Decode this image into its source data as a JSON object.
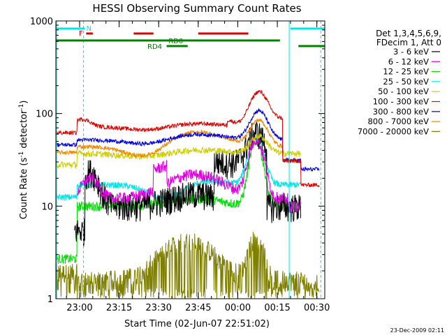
{
  "chart_data": {
    "type": "line",
    "title": "HESSI Observing Summary Count Rates",
    "xlabel": "Start Time (02-Jun-07 22:51:02)",
    "ylabel_main": "Count Rate (s",
    "ylabel_sup1": "-1",
    "ylabel_mid": " detector",
    "ylabel_sup2": "-1",
    "ylabel_end": ")",
    "y_scale": "log",
    "ylim": [
      1,
      1000
    ],
    "xlim_minutes": [
      0,
      102
    ],
    "y_ticks": [
      "1",
      "10",
      "100",
      "1000"
    ],
    "x_ticks": [
      {
        "label": "23:00",
        "t": 9
      },
      {
        "label": "23:15",
        "t": 24
      },
      {
        "label": "23:30",
        "t": 39
      },
      {
        "label": "23:45",
        "t": 54
      },
      {
        "label": "00:00",
        "t": 69
      },
      {
        "label": "00:15",
        "t": 84
      },
      {
        "label": "00:30",
        "t": 99
      }
    ],
    "legend_header": [
      "Det 1,3,4,5,6,9,",
      "FDecim 1, Att 0"
    ],
    "legend_placement": "right",
    "series": [
      {
        "name": "3 - 6 keV",
        "color": "#000000"
      },
      {
        "name": "6 - 12 keV",
        "color": "#dd00dd"
      },
      {
        "name": "12 - 25 keV",
        "color": "#00dd00"
      },
      {
        "name": "25 - 50 keV",
        "color": "#00e5e5"
      },
      {
        "name": "50 - 100 keV",
        "color": "#d0d000"
      },
      {
        "name": "100 - 300 keV",
        "color": "#dd0000"
      },
      {
        "name": "300 - 800 keV",
        "color": "#0000dd"
      },
      {
        "name": "800 - 7000 keV",
        "color": "#ee8800"
      },
      {
        "name": "7000 - 20000 keV",
        "color": "#808000"
      }
    ],
    "flags": [
      {
        "label": "N",
        "color": "#00e5e5"
      },
      {
        "label": "F",
        "color": "#dd0000"
      },
      {
        "label": "RD0",
        "color": "#008000"
      },
      {
        "label": "RD4",
        "color": "#008000"
      }
    ],
    "footer_date": "23-Dec-2009 02:11"
  }
}
